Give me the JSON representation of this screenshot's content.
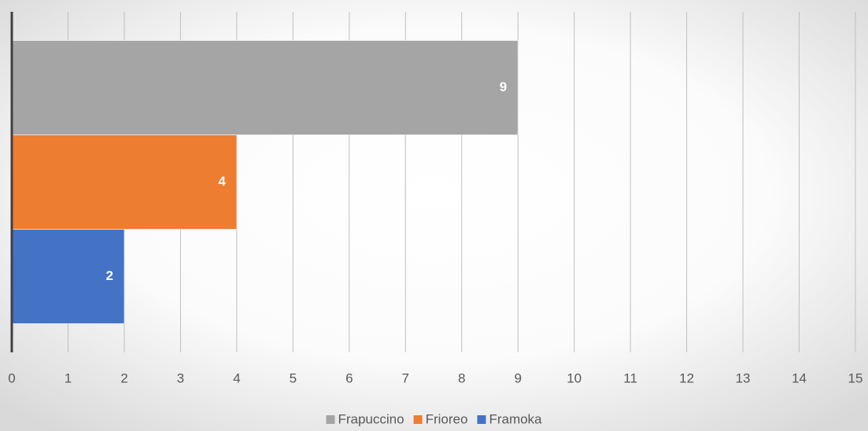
{
  "chart_data": {
    "type": "bar",
    "orientation": "horizontal",
    "series": [
      {
        "name": "Frapuccino",
        "color": "#a5a5a5",
        "values": [
          9
        ]
      },
      {
        "name": "Frioreo",
        "color": "#ed7d31",
        "values": [
          4
        ]
      },
      {
        "name": "Framoka",
        "color": "#4472c4",
        "values": [
          2
        ]
      }
    ],
    "xlim": [
      0,
      15
    ],
    "xticks": [
      0,
      1,
      2,
      3,
      4,
      5,
      6,
      7,
      8,
      9,
      10,
      11,
      12,
      13,
      14,
      15
    ],
    "grid": true,
    "legend": "bottom"
  }
}
